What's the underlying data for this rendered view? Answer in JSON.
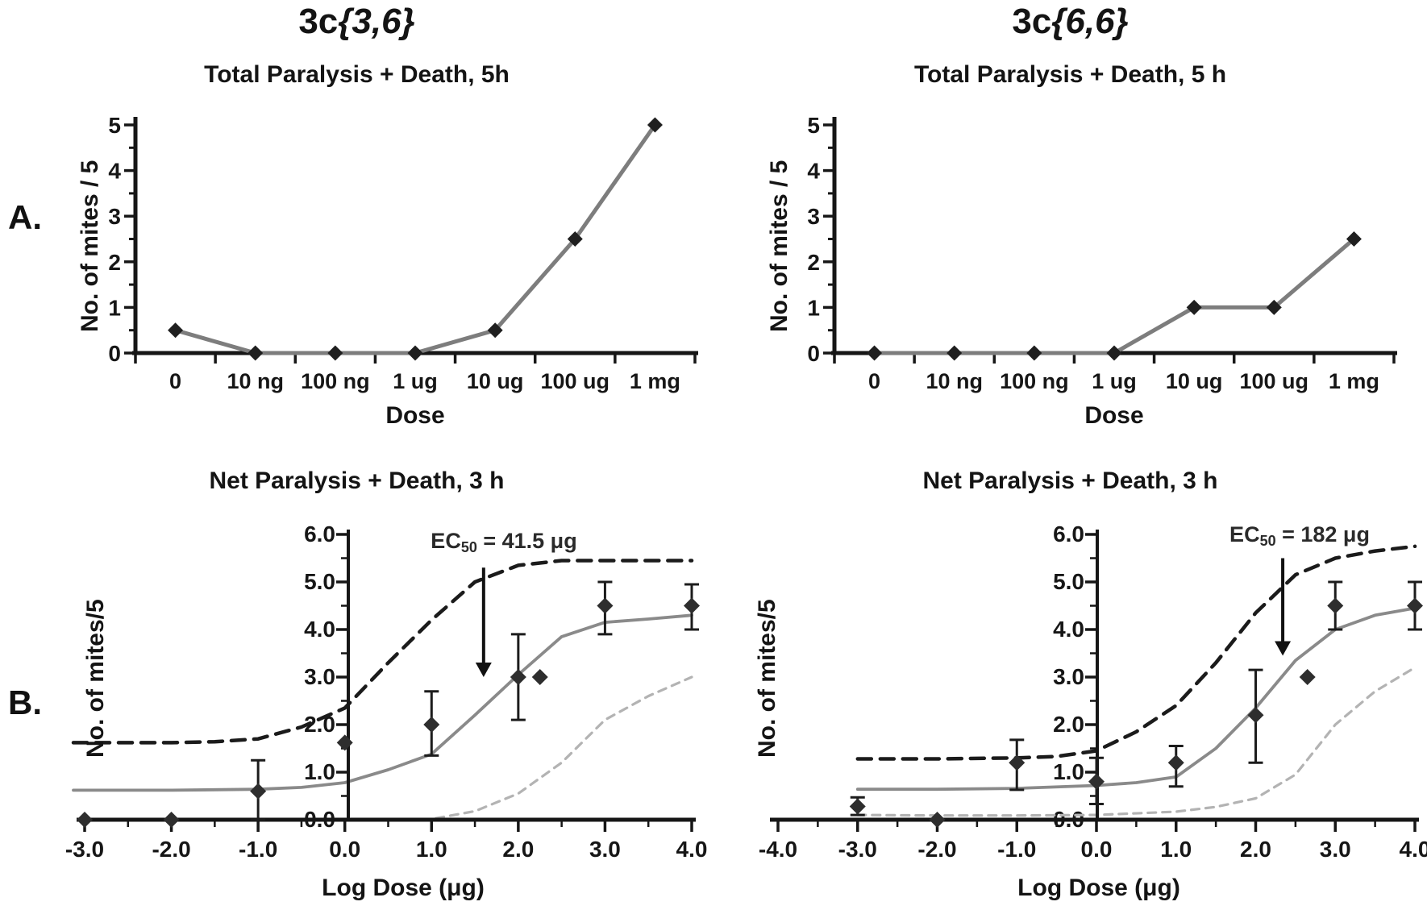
{
  "labels": {
    "panel_a": "A.",
    "panel_b": "B."
  },
  "chart_data": [
    {
      "id": "a-left",
      "type": "line",
      "compound": {
        "prefix": "3c",
        "args": "{3,6}"
      },
      "title": "Total Paralysis + Death, 5h",
      "xlabel": "Dose",
      "ylabel": "No. of mites / 5",
      "categories": [
        "0",
        "10 ng",
        "100 ng",
        "1 ug",
        "10 ug",
        "100 ug",
        "1 mg"
      ],
      "values": [
        0.5,
        0,
        0,
        0,
        0.5,
        2.5,
        5
      ],
      "ylim": [
        0,
        5
      ],
      "ytick_labels": [
        "0",
        "1",
        "2",
        "3",
        "4",
        "5"
      ],
      "yminor_step": 0.5,
      "line_color": "#7d7d7d",
      "marker_color": "#1f1f1f",
      "axis_color": "#161616"
    },
    {
      "id": "a-right",
      "type": "line",
      "compound": {
        "prefix": "3c",
        "args": "{6,6}"
      },
      "title": "Total Paralysis + Death, 5 h",
      "xlabel": "Dose",
      "ylabel": "No. of mites / 5",
      "categories": [
        "0",
        "10 ng",
        "100 ng",
        "1 ug",
        "10 ug",
        "100 ug",
        "1 mg"
      ],
      "values": [
        0,
        0,
        0,
        0,
        1,
        1,
        2.5
      ],
      "ylim": [
        0,
        5
      ],
      "ytick_labels": [
        "0",
        "1",
        "2",
        "3",
        "4",
        "5"
      ],
      "yminor_step": 0.5,
      "line_color": "#7d7d7d",
      "marker_color": "#1f1f1f",
      "axis_color": "#161616"
    },
    {
      "id": "b-left",
      "type": "scatter-fit",
      "title": "Net Paralysis + Death, 3 h",
      "xlabel": "Log Dose (μg)",
      "ylabel": "No. of mites/5",
      "xlim": [
        -3,
        4
      ],
      "xtick_labels": [
        "-3.0",
        "-2.0",
        "-1.0",
        "0.0",
        "1.0",
        "2.0",
        "3.0",
        "4.0"
      ],
      "ylim": [
        0,
        6
      ],
      "ytick_labels": [
        "0.0",
        "1.0",
        "2.0",
        "3.0",
        "4.0",
        "5.0",
        "6.0"
      ],
      "points": {
        "x": [
          -3,
          -2,
          -1,
          0,
          1,
          2,
          2.25,
          3,
          4
        ],
        "y": [
          0,
          0,
          0.6,
          1.62,
          2.0,
          3.0,
          3.0,
          4.5,
          4.5
        ],
        "err_lo": [
          null,
          null,
          0.0,
          null,
          1.35,
          2.1,
          null,
          3.9,
          4.0
        ],
        "err_hi": [
          null,
          null,
          1.25,
          null,
          2.7,
          3.9,
          null,
          5.0,
          4.95
        ]
      },
      "fit_line": [
        [
          -3.13,
          0.62
        ],
        [
          -2,
          0.62
        ],
        [
          -1,
          0.64
        ],
        [
          -0.5,
          0.68
        ],
        [
          0,
          0.78
        ],
        [
          0.5,
          1.05
        ],
        [
          1,
          1.38
        ],
        [
          1.5,
          2.2
        ],
        [
          2,
          3.05
        ],
        [
          2.5,
          3.85
        ],
        [
          3,
          4.15
        ],
        [
          3.5,
          4.22
        ],
        [
          4,
          4.3
        ]
      ],
      "upper_ci": [
        [
          -3.13,
          1.62
        ],
        [
          -2,
          1.62
        ],
        [
          -1.5,
          1.64
        ],
        [
          -1,
          1.7
        ],
        [
          -0.5,
          1.95
        ],
        [
          0,
          2.35
        ],
        [
          0.5,
          3.3
        ],
        [
          1,
          4.2
        ],
        [
          1.5,
          5.0
        ],
        [
          2,
          5.35
        ],
        [
          2.5,
          5.45
        ],
        [
          3,
          5.45
        ],
        [
          4,
          5.45
        ]
      ],
      "lower_ci": [
        [
          1.05,
          0.03
        ],
        [
          1.5,
          0.18
        ],
        [
          2,
          0.55
        ],
        [
          2.5,
          1.2
        ],
        [
          3,
          2.1
        ],
        [
          3.5,
          2.6
        ],
        [
          4,
          3.0
        ]
      ],
      "ec50": {
        "prefix": "EC",
        "sub": "50",
        "rest": " = 41.5 μg",
        "arrow_x": 1.6,
        "arrow_top": 5.3,
        "arrow_tip": 3.0
      },
      "fit_color": "#8a8a8a",
      "upper_color": "#1b1b1b",
      "lower_color": "#b3b3b3",
      "marker_color": "#2e2e2e",
      "axis_color": "#161616"
    },
    {
      "id": "b-right",
      "type": "scatter-fit",
      "title": "Net Paralysis + Death, 3 h",
      "xlabel": "Log Dose (μg)",
      "ylabel": "No. of mites/5",
      "xlim": [
        -4,
        4
      ],
      "xtick_labels": [
        "-4.0",
        "-3.0",
        "-2.0",
        "-1.0",
        "0.0",
        "1.0",
        "2.0",
        "3.0",
        "4.0"
      ],
      "ylim": [
        0,
        6
      ],
      "ytick_labels": [
        "0.0",
        "1.0",
        "2.0",
        "3.0",
        "4.0",
        "5.0",
        "6.0"
      ],
      "points": {
        "x": [
          -3,
          -2,
          -1,
          0,
          1,
          2,
          2.65,
          3,
          4
        ],
        "y": [
          0.28,
          0,
          1.2,
          0.8,
          1.2,
          2.2,
          3.0,
          4.5,
          4.5
        ],
        "err_lo": [
          0.1,
          null,
          0.63,
          0.33,
          0.7,
          1.2,
          null,
          4.0,
          4.0
        ],
        "err_hi": [
          0.47,
          null,
          1.68,
          1.3,
          1.55,
          3.15,
          null,
          5.0,
          5.0
        ]
      },
      "fit_line": [
        [
          -3,
          0.64
        ],
        [
          -2,
          0.64
        ],
        [
          -1,
          0.66
        ],
        [
          0,
          0.72
        ],
        [
          0.5,
          0.78
        ],
        [
          1,
          0.9
        ],
        [
          1.5,
          1.5
        ],
        [
          2,
          2.35
        ],
        [
          2.5,
          3.35
        ],
        [
          3,
          4.0
        ],
        [
          3.5,
          4.3
        ],
        [
          4,
          4.45
        ]
      ],
      "upper_ci": [
        [
          -3,
          1.28
        ],
        [
          -2,
          1.28
        ],
        [
          -1,
          1.3
        ],
        [
          -0.5,
          1.33
        ],
        [
          0,
          1.45
        ],
        [
          0.5,
          1.85
        ],
        [
          1,
          2.4
        ],
        [
          1.5,
          3.3
        ],
        [
          2,
          4.35
        ],
        [
          2.5,
          5.15
        ],
        [
          3,
          5.5
        ],
        [
          3.5,
          5.65
        ],
        [
          4,
          5.75
        ]
      ],
      "lower_ci": [
        [
          -3,
          0.1
        ],
        [
          -2,
          0.09
        ],
        [
          -1,
          0.09
        ],
        [
          0,
          0.1
        ],
        [
          1,
          0.17
        ],
        [
          1.5,
          0.27
        ],
        [
          2,
          0.45
        ],
        [
          2.5,
          0.95
        ],
        [
          3,
          2.0
        ],
        [
          3.5,
          2.7
        ],
        [
          4,
          3.2
        ]
      ],
      "ec50": {
        "prefix": "EC",
        "sub": "50",
        "rest": " = 182 μg",
        "arrow_x": 2.34,
        "arrow_top": 5.5,
        "arrow_tip": 3.45
      },
      "fit_color": "#8a8a8a",
      "upper_color": "#1b1b1b",
      "lower_color": "#b3b3b3",
      "marker_color": "#2e2e2e",
      "axis_color": "#161616"
    }
  ]
}
